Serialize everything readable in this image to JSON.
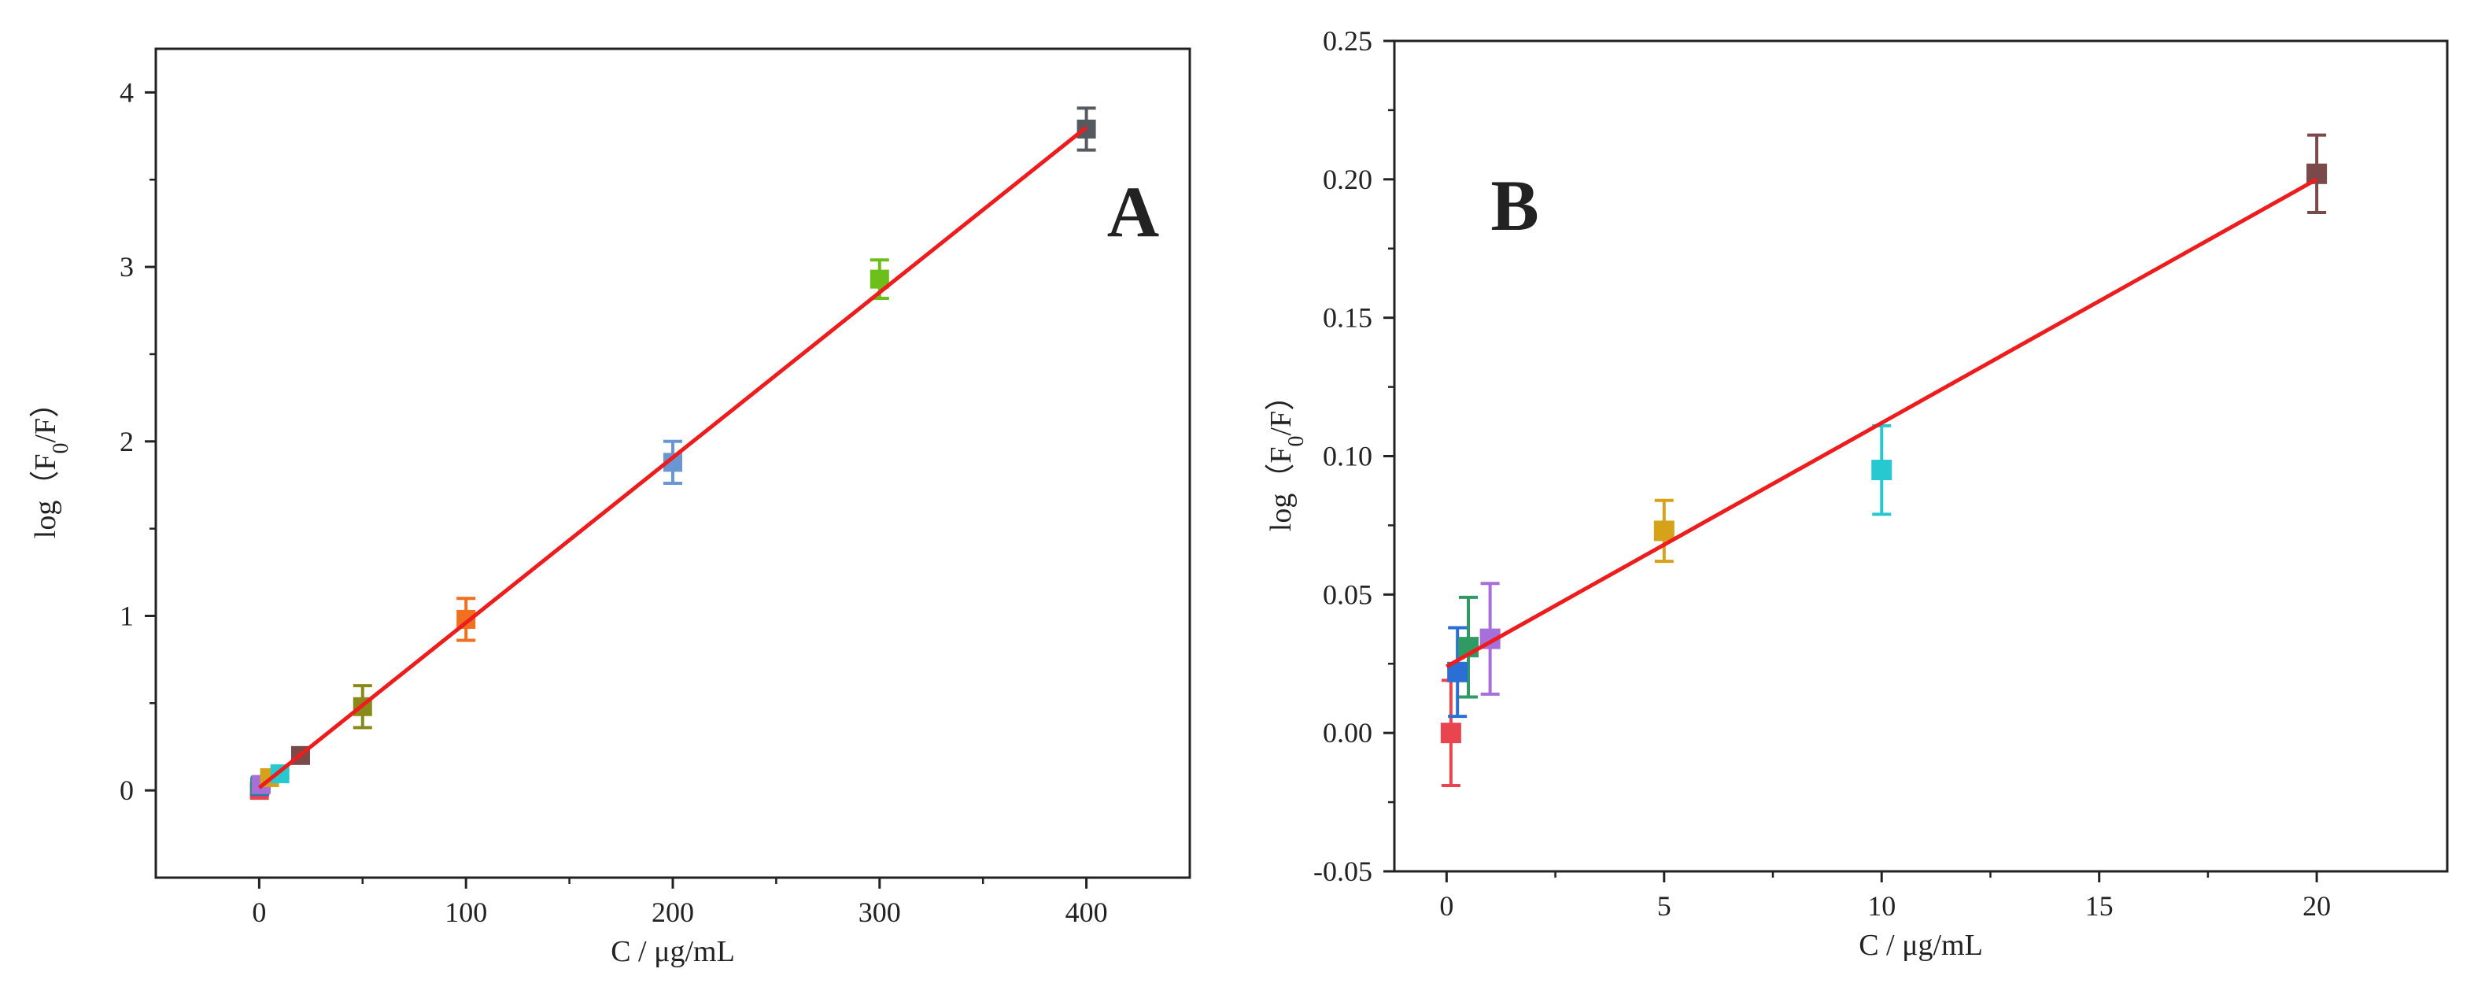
{
  "chart_data": [
    {
      "panel": "A",
      "type": "scatter",
      "panel_label": "A",
      "title": "",
      "xlabel": "C / μg/mL",
      "ylabel_main": "log（F",
      "ylabel_sub": "0",
      "ylabel_end": "/F）",
      "xlim": [
        -50,
        450
      ],
      "ylim": [
        -0.5,
        4.25
      ],
      "xticks": [
        0,
        100,
        200,
        300,
        400
      ],
      "xtick_labels": [
        "0",
        "100",
        "200",
        "300",
        "400"
      ],
      "yticks": [
        0,
        1,
        2,
        3,
        4
      ],
      "ytick_labels": [
        "0",
        "1",
        "2",
        "3",
        "4"
      ],
      "grid": false,
      "points": [
        {
          "x": 0.1,
          "y": 0.0,
          "err": 0.03,
          "color": "#e8454f"
        },
        {
          "x": 0.25,
          "y": 0.022,
          "err": 0.02,
          "color": "#2b6fd4"
        },
        {
          "x": 0.5,
          "y": 0.03,
          "err": 0.02,
          "color": "#2f9a63"
        },
        {
          "x": 1,
          "y": 0.034,
          "err": 0.02,
          "color": "#a66fd9"
        },
        {
          "x": 5,
          "y": 0.073,
          "err": 0.02,
          "color": "#d6a21a"
        },
        {
          "x": 10,
          "y": 0.095,
          "err": 0.02,
          "color": "#28c8d0"
        },
        {
          "x": 20,
          "y": 0.2,
          "err": 0.03,
          "color": "#7a4a4a"
        },
        {
          "x": 50,
          "y": 0.48,
          "err": 0.12,
          "color": "#8a8a1a"
        },
        {
          "x": 100,
          "y": 0.98,
          "err": 0.12,
          "color": "#f07020"
        },
        {
          "x": 200,
          "y": 1.88,
          "err": 0.12,
          "color": "#6b96d4"
        },
        {
          "x": 300,
          "y": 2.93,
          "err": 0.11,
          "color": "#6cbf1a"
        },
        {
          "x": 400,
          "y": 3.79,
          "err": 0.12,
          "color": "#555a60"
        }
      ],
      "fit_line": {
        "x": [
          0,
          400
        ],
        "y": [
          0.015,
          3.8
        ],
        "color": "#ee1c1c"
      }
    },
    {
      "panel": "B",
      "type": "scatter",
      "panel_label": "B",
      "title": "",
      "xlabel": "C / μg/mL",
      "ylabel_main": "log（F",
      "ylabel_sub": "0",
      "ylabel_end": "/F）",
      "xlim": [
        -1.2,
        23
      ],
      "ylim": [
        -0.05,
        0.25
      ],
      "xticks": [
        0,
        5,
        10,
        15,
        20
      ],
      "xtick_labels": [
        "0",
        "5",
        "10",
        "15",
        "20"
      ],
      "yticks": [
        -0.05,
        0,
        0.05,
        0.1,
        0.15,
        0.2,
        0.25
      ],
      "ytick_labels": [
        "-0.05",
        "0.00",
        "0.05",
        "0.10",
        "0.15",
        "0.20",
        "0.25"
      ],
      "grid": false,
      "points": [
        {
          "x": 0.1,
          "y": 0.0,
          "err": 0.019,
          "color": "#e8454f"
        },
        {
          "x": 0.25,
          "y": 0.022,
          "err": 0.016,
          "color": "#2b6fd4"
        },
        {
          "x": 0.5,
          "y": 0.031,
          "err": 0.018,
          "color": "#2f9a63"
        },
        {
          "x": 1,
          "y": 0.034,
          "err": 0.02,
          "color": "#a66fd9"
        },
        {
          "x": 5,
          "y": 0.073,
          "err": 0.011,
          "color": "#d6a21a"
        },
        {
          "x": 10,
          "y": 0.095,
          "err": 0.016,
          "color": "#28c8d0"
        },
        {
          "x": 20,
          "y": 0.202,
          "err": 0.014,
          "color": "#7a4a4a"
        }
      ],
      "fit_line": {
        "x": [
          0,
          20
        ],
        "y": [
          0.024,
          0.2
        ],
        "color": "#ee1c1c"
      }
    }
  ]
}
